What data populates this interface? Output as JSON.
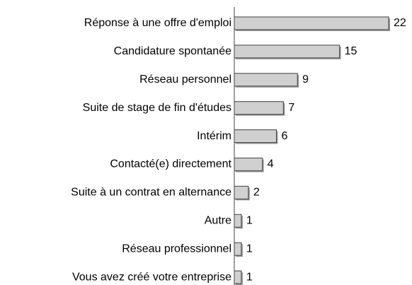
{
  "chart_data": {
    "type": "bar",
    "orientation": "horizontal",
    "categories": [
      "Réponse à une offre d'emploi",
      "Candidature spontanée",
      "Réseau personnel",
      "Suite de stage de fin d'études",
      "Intérim",
      "Contacté(e) directement",
      "Suite à un contrat en alternance",
      "Autre",
      "Réseau professionnel",
      "Vous avez créé votre entreprise"
    ],
    "values": [
      22,
      15,
      9,
      7,
      6,
      4,
      2,
      1,
      1,
      1
    ],
    "color": "#d0d0d0"
  }
}
